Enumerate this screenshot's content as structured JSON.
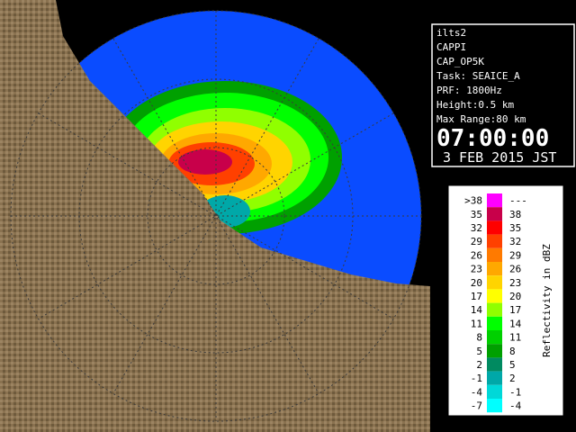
{
  "info": {
    "lines": [
      "ilts2",
      "CAPPI",
      "CAP_OP5K",
      "Task: SEAICE_A",
      "PRF: 1800Hz",
      "Height:0.5 km",
      "Max Range:80 km"
    ],
    "time": "07:00:00",
    "date": "3 FEB 2015 JST"
  },
  "legend": {
    "title": "Reflectivity in dBZ",
    "rows": [
      {
        "low": ">38",
        "high": "---",
        "color": "#ff00ff"
      },
      {
        "low": "35",
        "high": "38",
        "color": "#c8004a"
      },
      {
        "low": "32",
        "high": "35",
        "color": "#ff0000"
      },
      {
        "low": "29",
        "high": "32",
        "color": "#ff4000"
      },
      {
        "low": "26",
        "high": "29",
        "color": "#ff7a00"
      },
      {
        "low": "23",
        "high": "26",
        "color": "#ffa800"
      },
      {
        "low": "20",
        "high": "23",
        "color": "#ffd400"
      },
      {
        "low": "17",
        "high": "20",
        "color": "#ffff00"
      },
      {
        "low": "14",
        "high": "17",
        "color": "#90ff00"
      },
      {
        "low": "11",
        "high": "14",
        "color": "#00ff00"
      },
      {
        "low": "8",
        "high": "11",
        "color": "#00d000"
      },
      {
        "low": "5",
        "high": "8",
        "color": "#00a000"
      },
      {
        "low": "2",
        "high": "5",
        "color": "#008a60"
      },
      {
        "low": "-1",
        "high": "2",
        "color": "#00a8a8"
      },
      {
        "low": "-4",
        "high": "-1",
        "color": "#00d8d8"
      },
      {
        "low": "-7",
        "high": "-4",
        "color": "#00ffff"
      }
    ]
  }
}
